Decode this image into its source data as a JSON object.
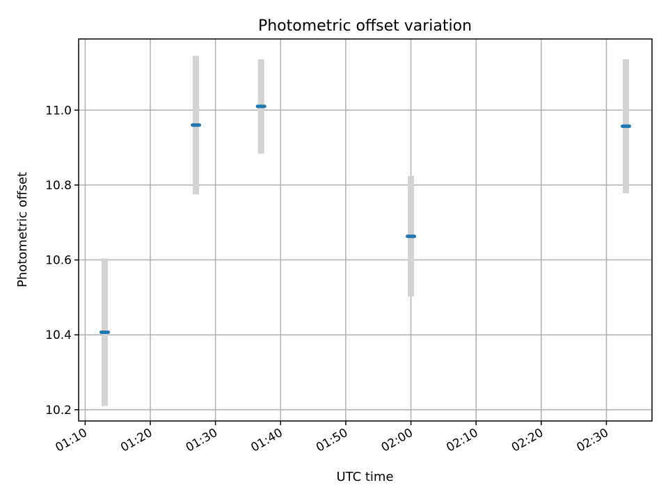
{
  "chart_data": {
    "type": "scatter",
    "title": "Photometric offset variation",
    "xlabel": "UTC time",
    "ylabel": "Photometric offset",
    "x_ticks": [
      "01:10",
      "01:20",
      "01:30",
      "01:40",
      "01:50",
      "02:00",
      "02:10",
      "02:20",
      "02:30"
    ],
    "y_ticks": [
      "10.2",
      "10.4",
      "10.6",
      "10.8",
      "11.0"
    ],
    "xlim": [
      "01:09",
      "02:37"
    ],
    "ylim": [
      10.17,
      11.19
    ],
    "grid": true,
    "colors": {
      "marker": "#1f77b4",
      "errorbar": "#d3d3d3"
    },
    "points": [
      {
        "x": "01:13",
        "y": 10.407,
        "yerr": 0.197
      },
      {
        "x": "01:27",
        "y": 10.96,
        "yerr": 0.185
      },
      {
        "x": "01:37",
        "y": 11.01,
        "yerr": 0.126
      },
      {
        "x": "02:00",
        "y": 10.663,
        "yerr": 0.161
      },
      {
        "x": "02:33",
        "y": 10.957,
        "yerr": 0.179
      }
    ]
  }
}
